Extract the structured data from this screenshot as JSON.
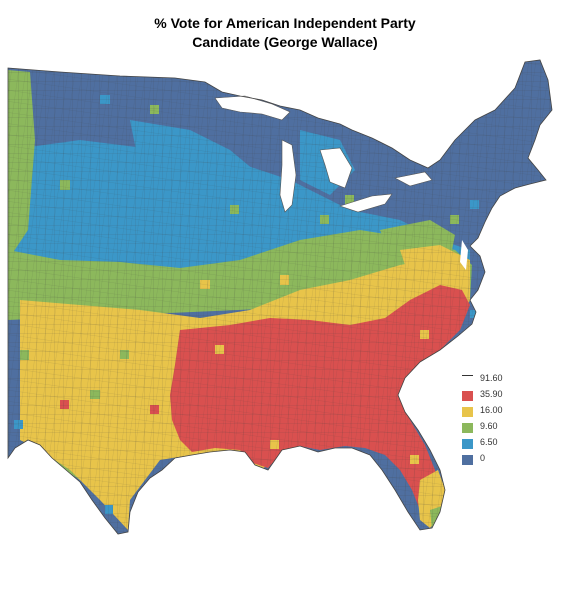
{
  "title_line1": "% Vote for American Independent Party",
  "title_line2": "Candidate (George Wallace)",
  "colors": {
    "very_high": "#d9504f",
    "high": "#e8c44a",
    "medium": "#8cb85c",
    "low": "#3b97c8",
    "very_low": "#4f6fa0",
    "ocean": "#ffffff",
    "lake": "#ffffff",
    "county_line": "#5a5a5a"
  },
  "legend": {
    "items": [
      {
        "label": "91.60",
        "color": "#ffffff",
        "is_top": true
      },
      {
        "label": "35.90",
        "color": "#d9504f"
      },
      {
        "label": "16.00",
        "color": "#e8c44a"
      },
      {
        "label": "9.60",
        "color": "#8cb85c"
      },
      {
        "label": "6.50",
        "color": "#3b97c8"
      },
      {
        "label": "0",
        "color": "#4f6fa0"
      }
    ]
  }
}
